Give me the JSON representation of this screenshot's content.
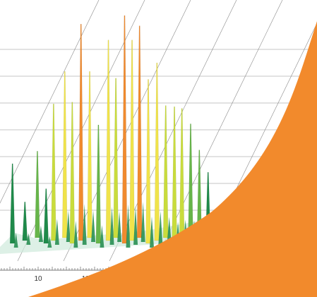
{
  "chart_data": {
    "type": "area",
    "style": "3d-waterfall-spectrum",
    "title": "",
    "xlabel": "",
    "ylabel": "",
    "x_tick_labels": [
      "10",
      "11"
    ],
    "xlim": [
      9.6,
      11.3
    ],
    "grid": true,
    "color_scale": [
      "#1f8a4a",
      "#67b54a",
      "#c9dc3c",
      "#f0e34a",
      "#f08a2e"
    ],
    "peaks": [
      {
        "x": 9.7,
        "h": 0.35
      },
      {
        "x": 9.8,
        "h": 0.17
      },
      {
        "x": 9.9,
        "h": 0.38
      },
      {
        "x": 9.97,
        "h": 0.24
      },
      {
        "x": 10.03,
        "h": 0.6
      },
      {
        "x": 10.12,
        "h": 0.73
      },
      {
        "x": 10.18,
        "h": 0.62
      },
      {
        "x": 10.25,
        "h": 0.95
      },
      {
        "x": 10.32,
        "h": 0.73
      },
      {
        "x": 10.39,
        "h": 0.52
      },
      {
        "x": 10.47,
        "h": 0.88
      },
      {
        "x": 10.53,
        "h": 0.7
      },
      {
        "x": 10.6,
        "h": 1.0
      },
      {
        "x": 10.66,
        "h": 0.88
      },
      {
        "x": 10.72,
        "h": 0.93
      },
      {
        "x": 10.79,
        "h": 0.72
      },
      {
        "x": 10.86,
        "h": 0.78
      },
      {
        "x": 10.93,
        "h": 0.58
      },
      {
        "x": 11.0,
        "h": 0.6
      },
      {
        "x": 11.06,
        "h": 0.58
      },
      {
        "x": 11.13,
        "h": 0.5
      },
      {
        "x": 11.2,
        "h": 0.41
      },
      {
        "x": 11.27,
        "h": 0.3
      }
    ],
    "accent_color": "#f28a2c"
  }
}
